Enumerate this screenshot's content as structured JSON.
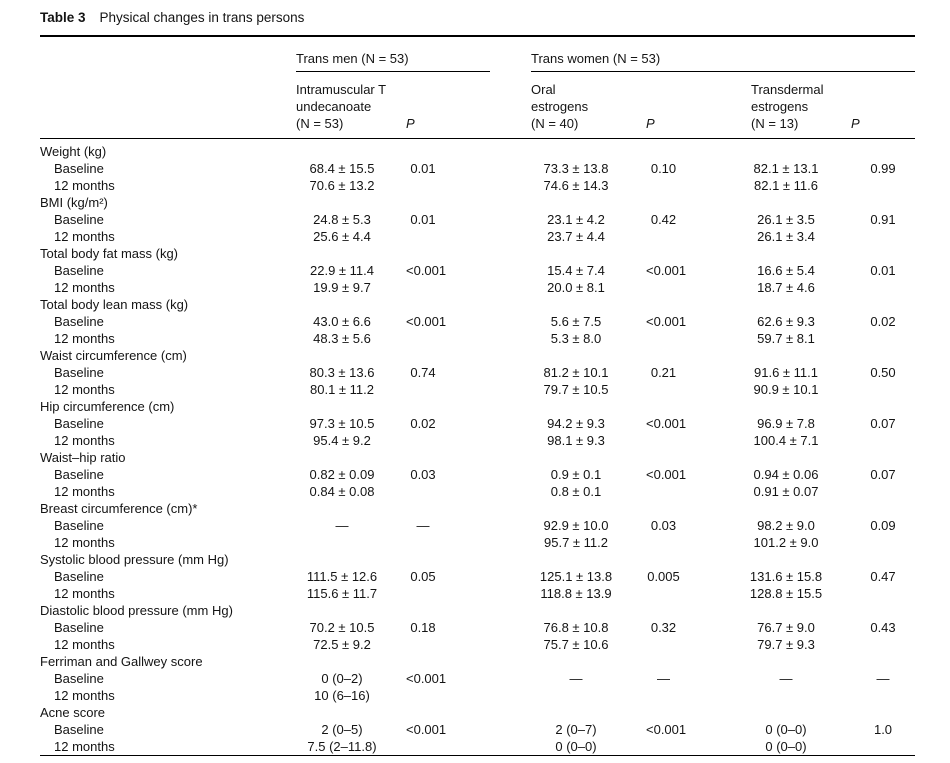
{
  "colors": {
    "background": "#ffffff",
    "text": "#141414",
    "rule": "#000000"
  },
  "caption": {
    "label": "Table 3",
    "title": "Physical changes in trans persons"
  },
  "header": {
    "groups": [
      {
        "label": "Trans men (N = 53)"
      },
      {
        "label": "Trans women (N = 53)"
      }
    ],
    "columns": [
      {
        "label": "Intramuscular T\nundecanoate\n(N = 53)",
        "italic": false
      },
      {
        "label": "P",
        "italic": true
      },
      {
        "label": "Oral\nestrogens\n(N = 40)",
        "italic": false
      },
      {
        "label": "P",
        "italic": true
      },
      {
        "label": "Transdermal\nestrogens\n(N = 13)",
        "italic": false
      },
      {
        "label": "P",
        "italic": true
      }
    ]
  },
  "sections": [
    {
      "name": "Weight (kg)",
      "rows": [
        {
          "label": "Baseline",
          "values": [
            "68.4 ± 15.5",
            "0.01",
            "73.3 ± 13.8",
            "0.10",
            "82.1 ± 13.1",
            "0.99"
          ]
        },
        {
          "label": "12 months",
          "values": [
            "70.6 ± 13.2",
            "",
            "74.6 ± 14.3",
            "",
            "82.1 ± 11.6",
            ""
          ]
        }
      ]
    },
    {
      "name": "BMI (kg/m²)",
      "rows": [
        {
          "label": "Baseline",
          "values": [
            "24.8 ± 5.3",
            "0.01",
            "23.1 ± 4.2",
            "0.42",
            "26.1 ± 3.5",
            "0.91"
          ]
        },
        {
          "label": "12 months",
          "values": [
            "25.6 ± 4.4",
            "",
            "23.7 ± 4.4",
            "",
            "26.1 ± 3.4",
            ""
          ]
        }
      ]
    },
    {
      "name": "Total body fat mass (kg)",
      "rows": [
        {
          "label": "Baseline",
          "values": [
            "22.9 ± 11.4",
            "<0.001",
            "15.4 ± 7.4",
            "<0.001",
            "16.6 ± 5.4",
            "0.01"
          ]
        },
        {
          "label": "12 months",
          "values": [
            "19.9 ± 9.7",
            "",
            "20.0 ± 8.1",
            "",
            "18.7 ± 4.6",
            ""
          ]
        }
      ]
    },
    {
      "name": "Total body lean mass (kg)",
      "rows": [
        {
          "label": "Baseline",
          "values": [
            "43.0 ± 6.6",
            "<0.001",
            "5.6 ± 7.5",
            "<0.001",
            "62.6 ± 9.3",
            "0.02"
          ]
        },
        {
          "label": "12 months",
          "values": [
            "48.3 ± 5.6",
            "",
            "5.3 ± 8.0",
            "",
            "59.7 ± 8.1",
            ""
          ]
        }
      ]
    },
    {
      "name": "Waist circumference (cm)",
      "rows": [
        {
          "label": "Baseline",
          "values": [
            "80.3 ± 13.6",
            "0.74",
            "81.2 ± 10.1",
            "0.21",
            "91.6 ± 11.1",
            "0.50"
          ]
        },
        {
          "label": "12 months",
          "values": [
            "80.1 ± 11.2",
            "",
            "79.7 ± 10.5",
            "",
            "90.9 ± 10.1",
            ""
          ]
        }
      ]
    },
    {
      "name": "Hip circumference (cm)",
      "rows": [
        {
          "label": "Baseline",
          "values": [
            "97.3 ± 10.5",
            "0.02",
            "94.2 ± 9.3",
            "<0.001",
            "96.9 ± 7.8",
            "0.07"
          ]
        },
        {
          "label": "12 months",
          "values": [
            "95.4 ± 9.2",
            "",
            "98.1 ± 9.3",
            "",
            "100.4 ± 7.1",
            ""
          ]
        }
      ]
    },
    {
      "name": "Waist–hip ratio",
      "rows": [
        {
          "label": "Baseline",
          "values": [
            "0.82 ± 0.09",
            "0.03",
            "0.9 ± 0.1",
            "<0.001",
            "0.94 ± 0.06",
            "0.07"
          ]
        },
        {
          "label": "12 months",
          "values": [
            "0.84 ± 0.08",
            "",
            "0.8 ± 0.1",
            "",
            "0.91 ± 0.07",
            ""
          ]
        }
      ]
    },
    {
      "name": "Breast circumference (cm)*",
      "rows": [
        {
          "label": "Baseline",
          "values": [
            "—",
            "—",
            "92.9 ± 10.0",
            "0.03",
            "98.2 ± 9.0",
            "0.09"
          ]
        },
        {
          "label": "12 months",
          "values": [
            "",
            "",
            "95.7 ± 11.2",
            "",
            "101.2 ± 9.0",
            ""
          ]
        }
      ]
    },
    {
      "name": "Systolic blood pressure (mm Hg)",
      "rows": [
        {
          "label": "Baseline",
          "values": [
            "111.5 ± 12.6",
            "0.05",
            "125.1 ± 13.8",
            "0.005",
            "131.6 ± 15.8",
            "0.47"
          ]
        },
        {
          "label": "12 months",
          "values": [
            "115.6 ± 11.7",
            "",
            "118.8 ± 13.9",
            "",
            "128.8 ± 15.5",
            ""
          ]
        }
      ]
    },
    {
      "name": "Diastolic blood pressure (mm Hg)",
      "rows": [
        {
          "label": "Baseline",
          "values": [
            "70.2 ± 10.5",
            "0.18",
            "76.8 ± 10.8",
            "0.32",
            "76.7 ± 9.0",
            "0.43"
          ]
        },
        {
          "label": "12 months",
          "values": [
            "72.5 ± 9.2",
            "",
            "75.7 ± 10.6",
            "",
            "79.7 ± 9.3",
            ""
          ]
        }
      ]
    },
    {
      "name": "Ferriman and Gallwey score",
      "rows": [
        {
          "label": "Baseline",
          "values": [
            "0 (0–2)",
            "<0.001",
            "—",
            "—",
            "—",
            "—"
          ]
        },
        {
          "label": "12 months",
          "values": [
            "10 (6–16)",
            "",
            "",
            "",
            "",
            ""
          ]
        }
      ]
    },
    {
      "name": "Acne score",
      "rows": [
        {
          "label": "Baseline",
          "values": [
            "2 (0–5)",
            "<0.001",
            "2 (0–7)",
            "<0.001",
            "0 (0–0)",
            "1.0"
          ]
        },
        {
          "label": "12 months",
          "values": [
            "7.5 (2–11.8)",
            "",
            "0 (0–0)",
            "",
            "0 (0–0)",
            ""
          ]
        }
      ]
    }
  ]
}
